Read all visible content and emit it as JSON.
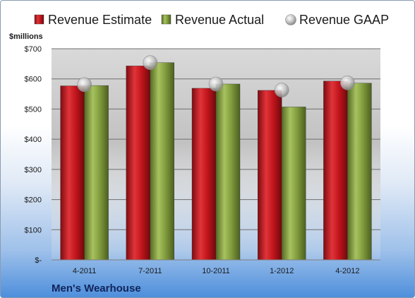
{
  "chart_data": {
    "type": "bar",
    "footer": "Men's Wearhouse",
    "unit_label": "$millions",
    "categories": [
      "4-2011",
      "7-2011",
      "10-2011",
      "1-2012",
      "4-2012"
    ],
    "series": [
      {
        "name": "Revenue Estimate",
        "kind": "bar",
        "color": "#c0141b",
        "values": [
          577,
          643,
          569,
          562,
          593
        ]
      },
      {
        "name": "Revenue Actual",
        "kind": "bar",
        "color": "#7f9a3c",
        "values": [
          578,
          654,
          583,
          507,
          586
        ]
      },
      {
        "name": "Revenue GAAP",
        "kind": "marker",
        "color": "#b7b7b7",
        "values": [
          581,
          654,
          583,
          563,
          587
        ]
      }
    ],
    "y_ticks": [
      {
        "value": 0,
        "label": "$-"
      },
      {
        "value": 100,
        "label": "$100"
      },
      {
        "value": 200,
        "label": "$200"
      },
      {
        "value": 300,
        "label": "$300"
      },
      {
        "value": 400,
        "label": "$400"
      },
      {
        "value": 500,
        "label": "$500"
      },
      {
        "value": 600,
        "label": "$600"
      },
      {
        "value": 700,
        "label": "$700"
      }
    ],
    "ylim": [
      0,
      700
    ],
    "grid": true,
    "legend_position": "top"
  }
}
